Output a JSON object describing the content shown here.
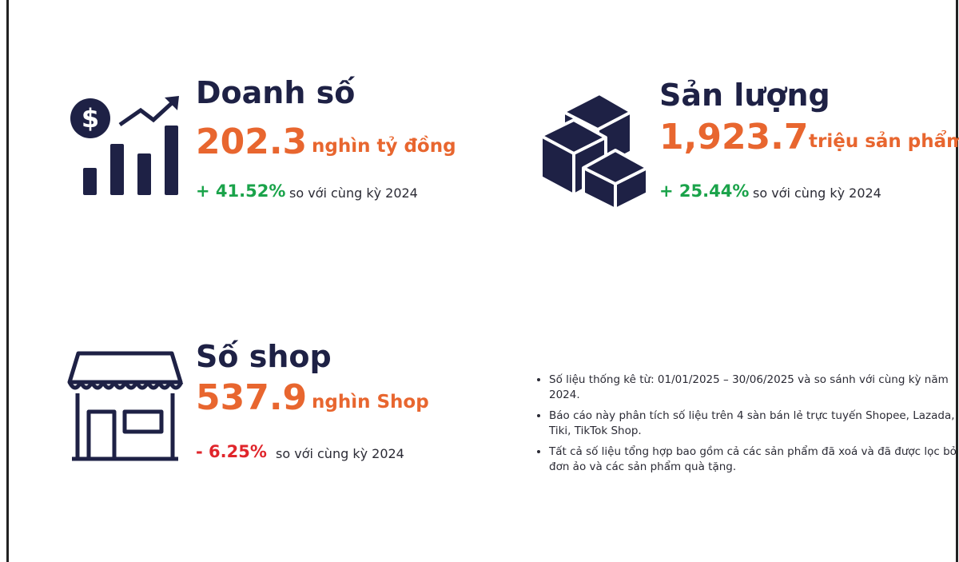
{
  "stats": [
    {
      "title": "Doanh số",
      "value": "202.3",
      "unit": "nghìn tỷ đồng",
      "change": "+ 41.52%",
      "comparison": "so với cùng kỳ 2024"
    },
    {
      "title": "Sản lượng",
      "value": "1,923.7",
      "unit": "triệu sản phẩm",
      "change": "+ 25.44%",
      "comparison": "so với cùng kỳ 2024"
    },
    {
      "title": "Số shop",
      "value": "537.9",
      "unit": "nghìn Shop",
      "change": "- 6.25%",
      "comparison": "so với cùng kỳ 2024"
    }
  ],
  "notes": [
    "Số liệu thống kê từ: 01/01/2025 – 30/06/2025 và so sánh với cùng kỳ năm 2024.",
    "Báo cáo này phân tích số liệu trên 4 sàn bán lẻ trực tuyến Shopee, Lazada, Tiki,  TikTok Shop.",
    "Tất cả số liệu tổng hợp bao gồm cả các sản phẩm đã xoá và đã được lọc bỏ đơn ảo và các sản phẩm quà tặng."
  ]
}
